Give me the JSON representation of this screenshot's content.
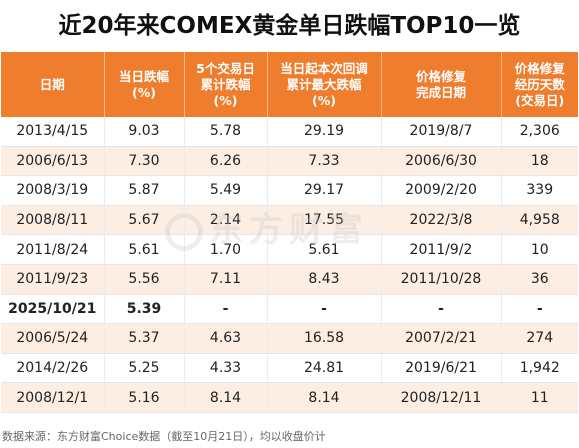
{
  "title": "近20年来COMEX黄金单日跌幅TOP10一览",
  "headers": [
    [
      "日期"
    ],
    [
      "当日跌幅",
      "(%)"
    ],
    [
      "5个交易日",
      "累计跌幅",
      "(%)"
    ],
    [
      "当日起本次回调",
      "累计最大跌幅",
      "(%)"
    ],
    [
      "价格修复",
      "完成日期"
    ],
    [
      "价格修复",
      "经历天数",
      "(交易日)"
    ]
  ],
  "rows": [
    [
      "2013/4/15",
      "9.03",
      "5.78",
      "29.19",
      "2019/8/7",
      "2,306"
    ],
    [
      "2006/6/13",
      "7.30",
      "6.26",
      "7.33",
      "2006/6/30",
      "18"
    ],
    [
      "2008/3/19",
      "5.87",
      "5.49",
      "29.17",
      "2009/2/20",
      "339"
    ],
    [
      "2008/8/11",
      "5.67",
      "2.14",
      "17.55",
      "2022/3/8",
      "4,958"
    ],
    [
      "2011/8/24",
      "5.61",
      "1.70",
      "5.61",
      "2011/9/2",
      "10"
    ],
    [
      "2011/9/23",
      "5.56",
      "7.11",
      "8.43",
      "2011/10/28",
      "36"
    ],
    [
      "2025/10/21",
      "5.39",
      "-",
      "-",
      "-",
      "-"
    ],
    [
      "2006/5/24",
      "5.37",
      "4.63",
      "16.58",
      "2007/2/21",
      "274"
    ],
    [
      "2014/2/26",
      "5.25",
      "4.33",
      "24.81",
      "2019/6/21",
      "1,942"
    ],
    [
      "2008/12/1",
      "5.16",
      "8.14",
      "8.14",
      "2008/12/11",
      "11"
    ]
  ],
  "highlight_row": 6,
  "watermark": "东方财富",
  "source": "数据来源：东方财富Choice数据（截至10月21日），均以收盘价计",
  "colors": {
    "header_bg": "#ee7d2e",
    "stripe_bg": "#fdeee3"
  }
}
